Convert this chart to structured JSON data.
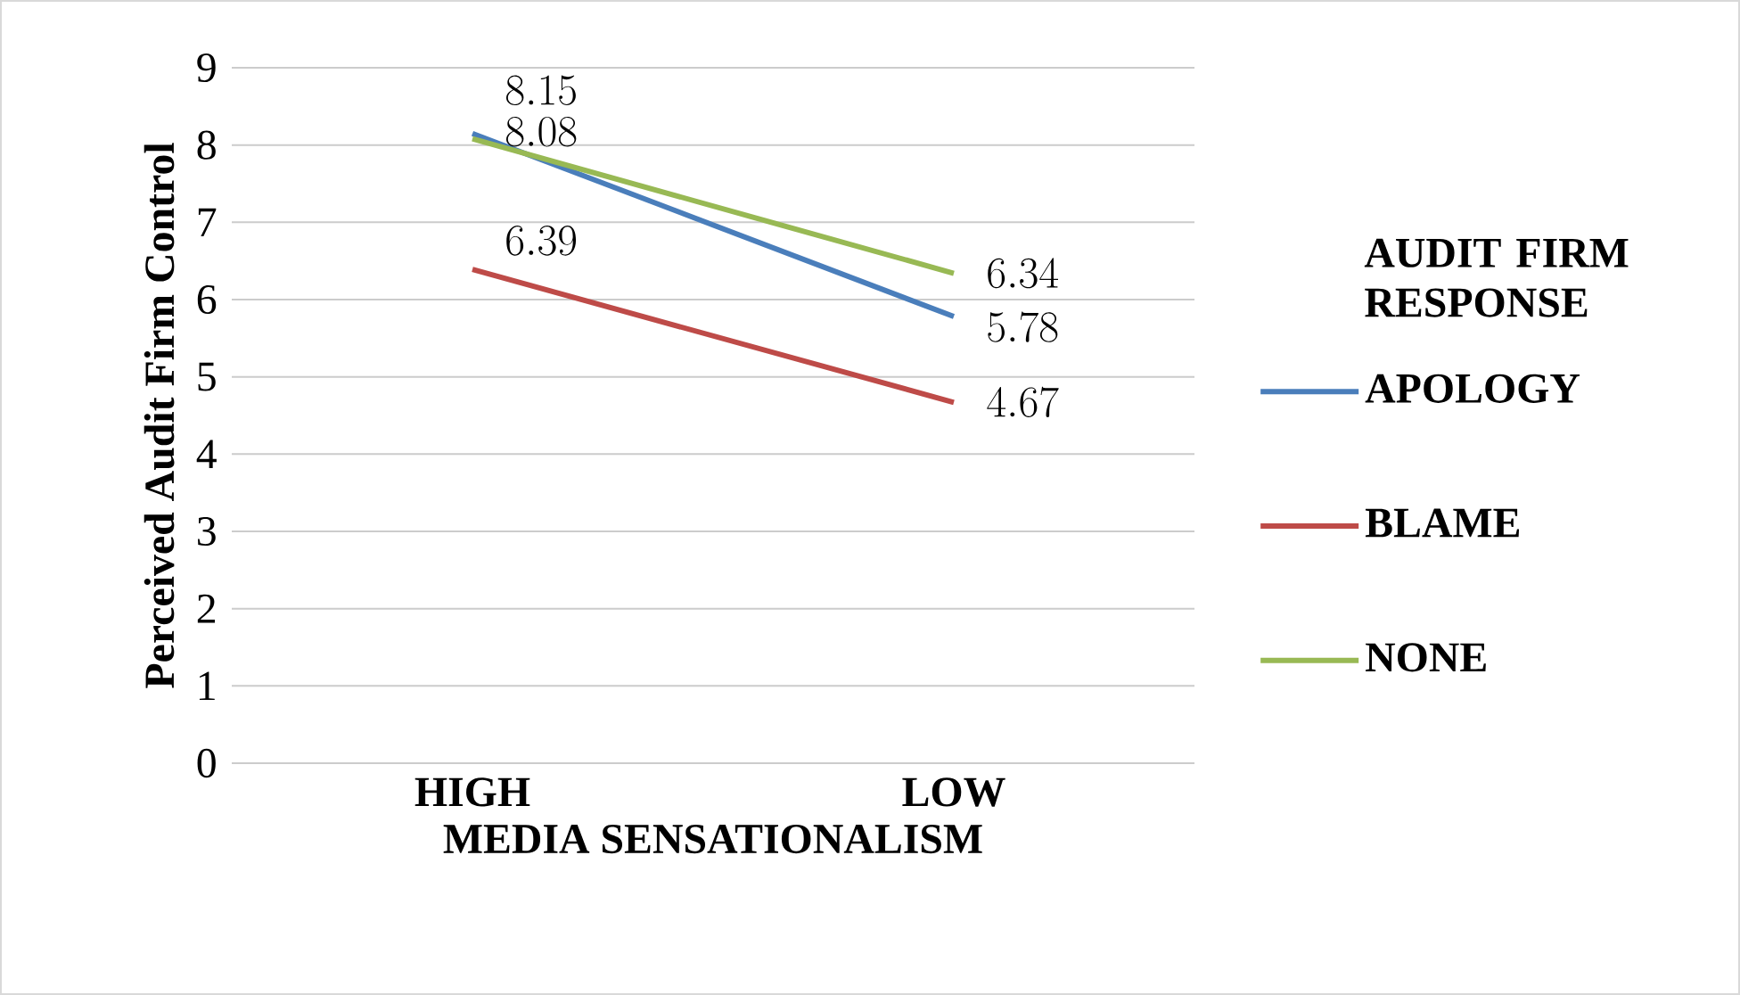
{
  "chart_data": {
    "type": "line",
    "xlabel": "MEDIA SENSATIONALISM",
    "ylabel": "Perceived Audit Firm Control",
    "categories": [
      "HIGH",
      "LOW"
    ],
    "series": [
      {
        "name": "APOLOGY",
        "color": "#4a7ebb",
        "values": [
          8.15,
          5.78
        ]
      },
      {
        "name": "BLAME",
        "color": "#be4b48",
        "values": [
          6.39,
          4.67
        ]
      },
      {
        "name": "NONE",
        "color": "#98b954",
        "values": [
          8.08,
          6.34
        ]
      }
    ],
    "ylim": [
      0,
      9
    ],
    "yticks": [
      0,
      1,
      2,
      3,
      4,
      5,
      6,
      7,
      8,
      9
    ],
    "grid": "y",
    "legend": "right",
    "legend_title": "AUDIT FIRM RESPONSE",
    "data_labels": true,
    "marker": "none",
    "line_style": "solid"
  }
}
